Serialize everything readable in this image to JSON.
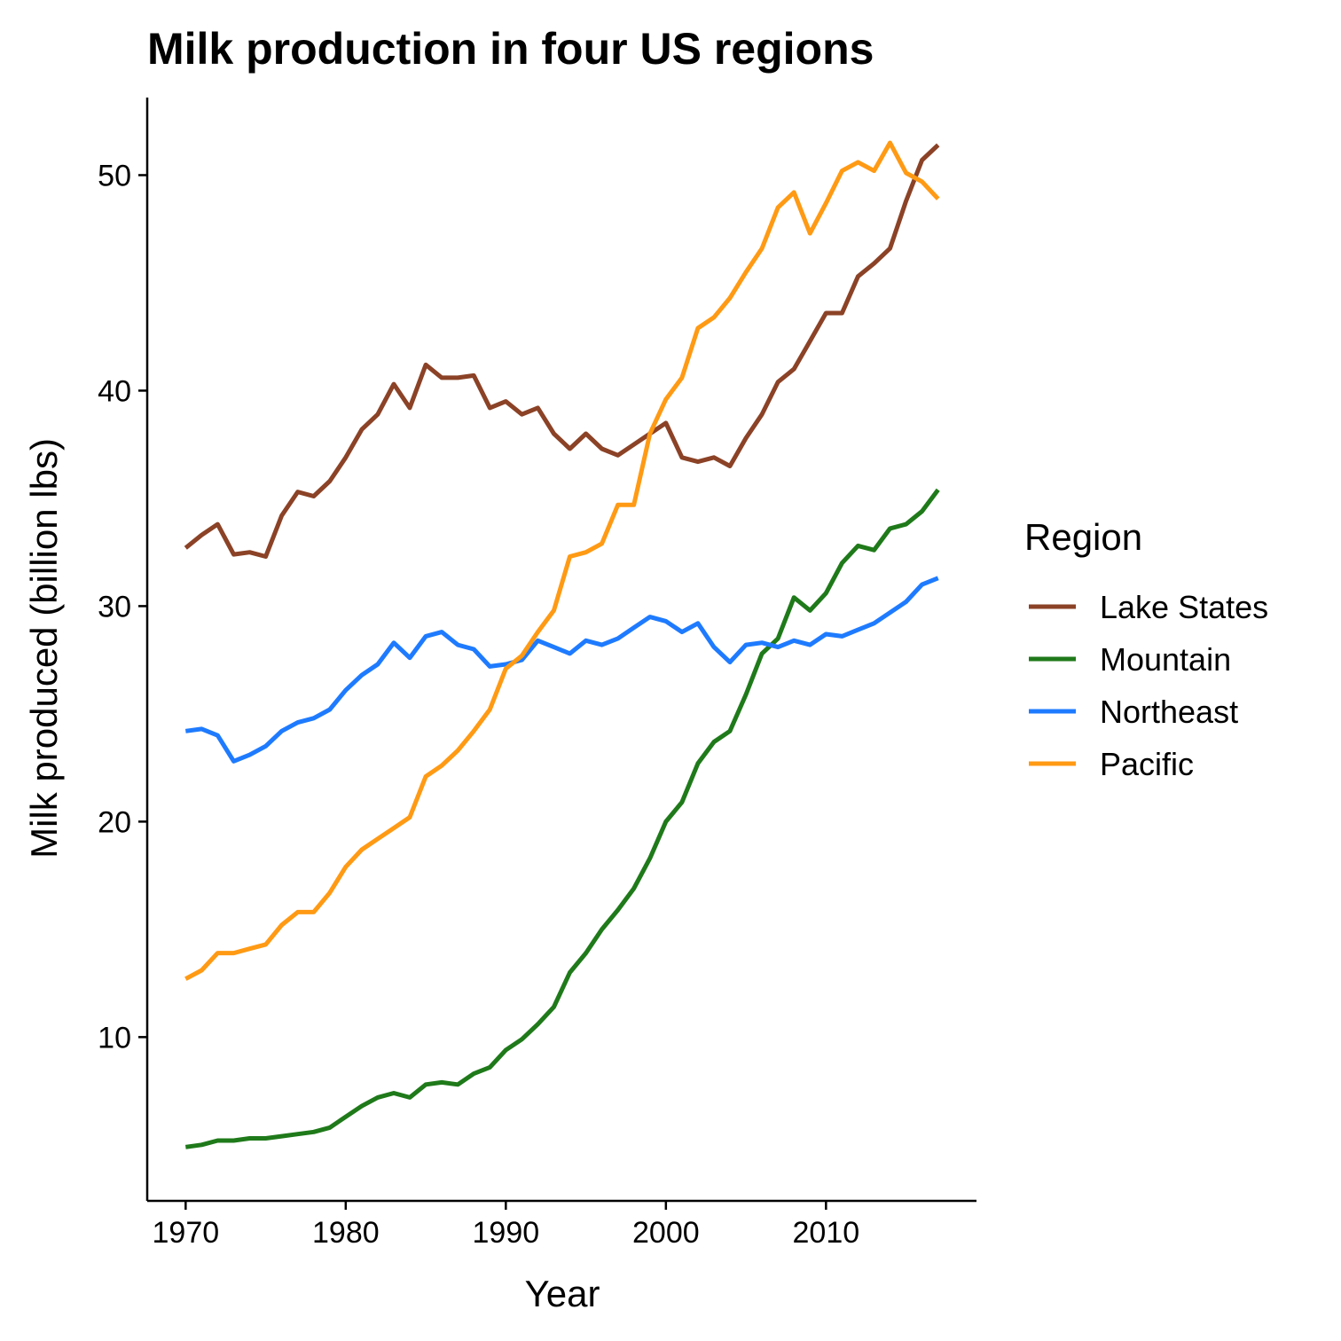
{
  "chart_data": {
    "type": "line",
    "title": "Milk production in four US regions",
    "xlabel": "Year",
    "ylabel": "Milk produced (billion lbs)",
    "xlim": [
      1967.6,
      2019.4
    ],
    "ylim": [
      2.4,
      53.6
    ],
    "x_ticks": [
      1970,
      1980,
      1990,
      2000,
      2010
    ],
    "y_ticks": [
      10,
      20,
      30,
      40,
      50
    ],
    "grid": false,
    "legend": {
      "title": "Region",
      "position": "right"
    },
    "x": [
      1970,
      1971,
      1972,
      1973,
      1974,
      1975,
      1976,
      1977,
      1978,
      1979,
      1980,
      1981,
      1982,
      1983,
      1984,
      1985,
      1986,
      1987,
      1988,
      1989,
      1990,
      1991,
      1992,
      1993,
      1994,
      1995,
      1996,
      1997,
      1998,
      1999,
      2000,
      2001,
      2002,
      2003,
      2004,
      2005,
      2006,
      2007,
      2008,
      2009,
      2010,
      2011,
      2012,
      2013,
      2014,
      2015,
      2016,
      2017
    ],
    "series": [
      {
        "name": "Lake States",
        "color": "#8B4226",
        "values": [
          32.7,
          33.3,
          33.8,
          32.4,
          32.5,
          32.3,
          34.2,
          35.3,
          35.1,
          35.8,
          36.9,
          38.2,
          38.9,
          40.3,
          39.2,
          41.2,
          40.6,
          40.6,
          40.7,
          39.2,
          39.5,
          38.9,
          39.2,
          38.0,
          37.3,
          38.0,
          37.3,
          37.0,
          37.5,
          38.0,
          38.5,
          36.9,
          36.7,
          36.9,
          36.5,
          37.8,
          38.9,
          40.4,
          41.0,
          42.3,
          43.6,
          43.6,
          45.3,
          45.9,
          46.6,
          48.8,
          50.7,
          51.4
        ]
      },
      {
        "name": "Mountain",
        "color": "#1F7A1A",
        "values": [
          4.9,
          5.0,
          5.2,
          5.2,
          5.3,
          5.3,
          5.4,
          5.5,
          5.6,
          5.8,
          6.3,
          6.8,
          7.2,
          7.4,
          7.2,
          7.8,
          7.9,
          7.8,
          8.3,
          8.6,
          9.4,
          9.9,
          10.6,
          11.4,
          13.0,
          13.9,
          15.0,
          15.9,
          16.9,
          18.3,
          20.0,
          20.9,
          22.7,
          23.7,
          24.2,
          25.9,
          27.8,
          28.5,
          30.4,
          29.8,
          30.6,
          32.0,
          32.8,
          32.6,
          33.6,
          33.8,
          34.4,
          35.4
        ]
      },
      {
        "name": "Northeast",
        "color": "#1E7BFF",
        "values": [
          24.2,
          24.3,
          24.0,
          22.8,
          23.1,
          23.5,
          24.2,
          24.6,
          24.8,
          25.2,
          26.1,
          26.8,
          27.3,
          28.3,
          27.6,
          28.6,
          28.8,
          28.2,
          28.0,
          27.2,
          27.3,
          27.5,
          28.4,
          28.1,
          27.8,
          28.4,
          28.2,
          28.5,
          29.0,
          29.5,
          29.3,
          28.8,
          29.2,
          28.1,
          27.4,
          28.2,
          28.3,
          28.1,
          28.4,
          28.2,
          28.7,
          28.6,
          28.9,
          29.2,
          29.7,
          30.2,
          31.0,
          31.3
        ]
      },
      {
        "name": "Pacific",
        "color": "#FF9A14",
        "values": [
          12.7,
          13.1,
          13.9,
          13.9,
          14.1,
          14.3,
          15.2,
          15.8,
          15.8,
          16.7,
          17.9,
          18.7,
          19.2,
          19.7,
          20.2,
          22.1,
          22.6,
          23.3,
          24.2,
          25.2,
          27.1,
          27.7,
          28.8,
          29.8,
          32.3,
          32.5,
          32.9,
          34.7,
          34.7,
          38.0,
          39.6,
          40.6,
          42.9,
          43.4,
          44.3,
          45.5,
          46.6,
          48.5,
          49.2,
          47.3,
          48.7,
          50.2,
          50.6,
          50.2,
          51.5,
          50.1,
          49.7,
          48.9
        ]
      }
    ]
  }
}
